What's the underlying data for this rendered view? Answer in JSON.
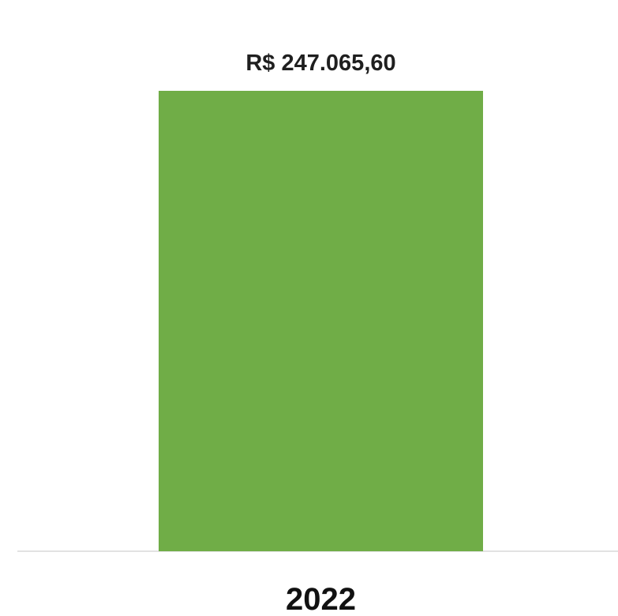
{
  "chart_data": {
    "type": "bar",
    "categories": [
      "2022"
    ],
    "values": [
      247065.6
    ],
    "data_labels": [
      "R$ 247.065,60"
    ],
    "ylim": [
      0,
      247065.6
    ],
    "grid": false,
    "legend": "none",
    "bar_color": "#70ad47",
    "axis_color": "#d9d9d9"
  }
}
